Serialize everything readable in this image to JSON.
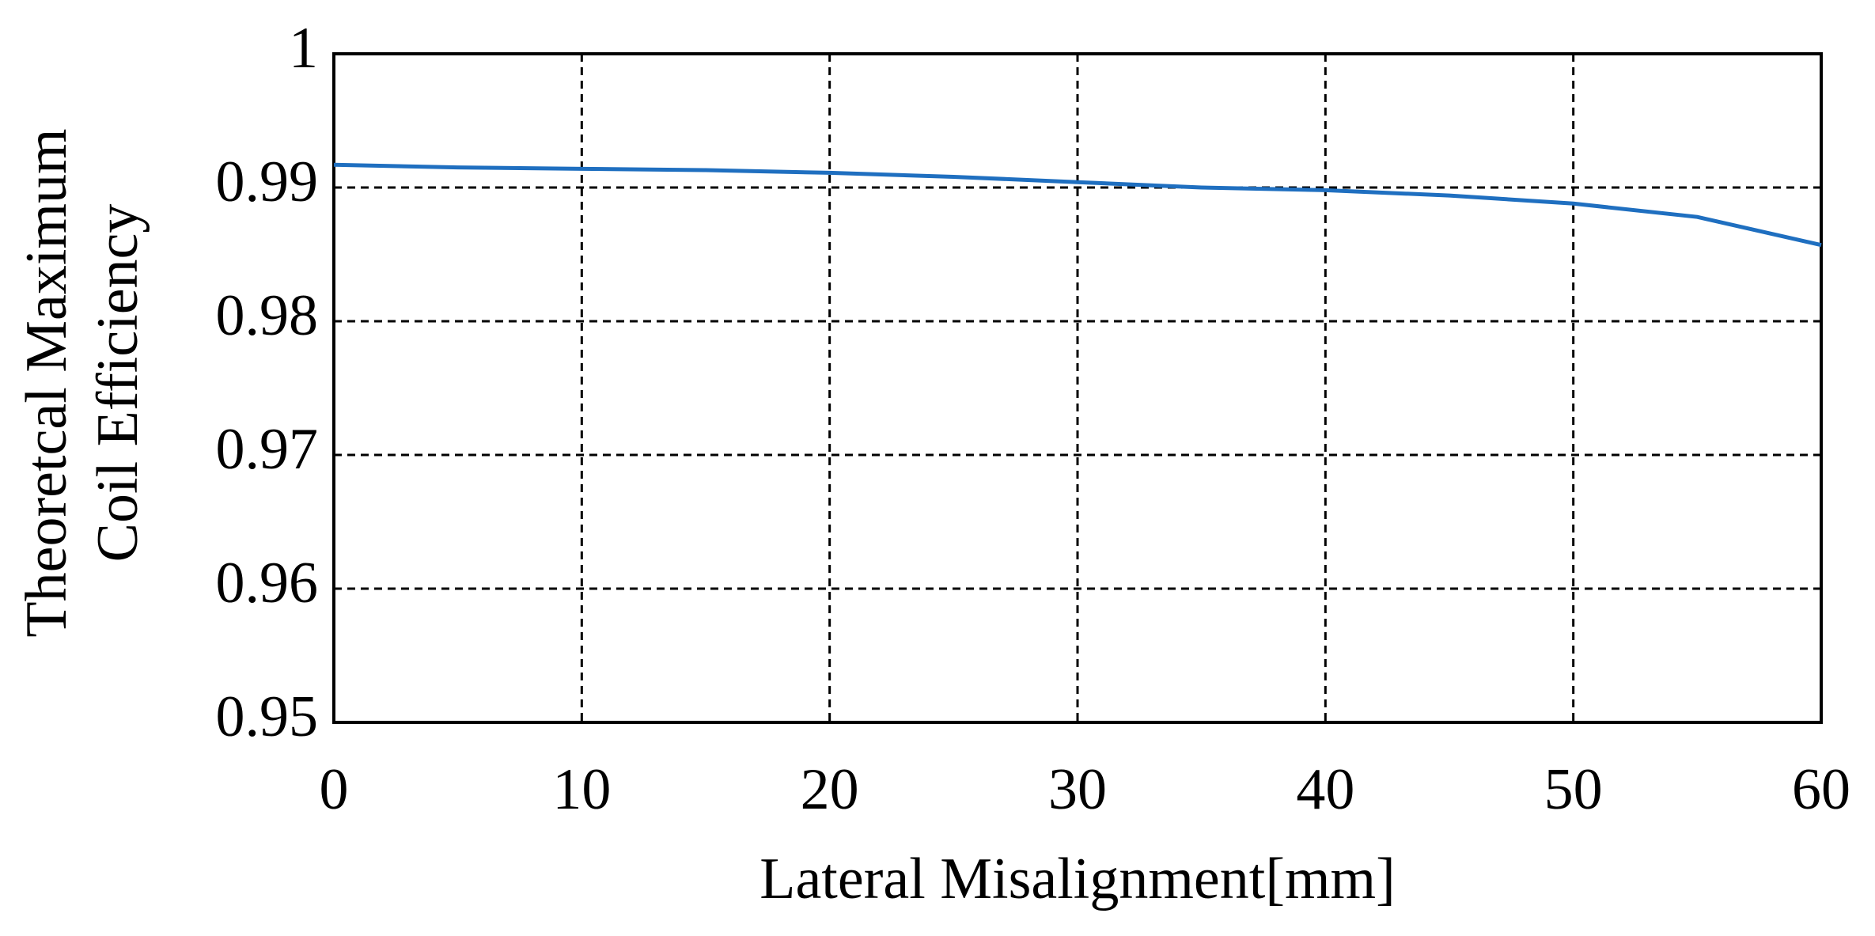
{
  "chart_data": {
    "type": "line",
    "xlabel": "Lateral Misalignment[mm]",
    "ylabel": [
      "Theoretcal Maximum",
      "Coil Efficiency"
    ],
    "x": [
      0,
      5,
      10,
      15,
      20,
      25,
      30,
      35,
      40,
      45,
      50,
      55,
      60
    ],
    "series": [
      {
        "color": "#1f6fc0",
        "values": [
          0.9917,
          0.9915,
          0.9914,
          0.9913,
          0.9911,
          0.9908,
          0.9904,
          0.99,
          0.9898,
          0.9894,
          0.9888,
          0.9878,
          0.9857
        ]
      }
    ],
    "xlim": [
      0,
      60
    ],
    "xticks": [
      0,
      10,
      20,
      30,
      40,
      50,
      60
    ],
    "ylim": [
      0.95,
      1
    ],
    "yticks": [
      0.95,
      0.96,
      0.97,
      0.98,
      0.99,
      1
    ],
    "grid": true
  }
}
